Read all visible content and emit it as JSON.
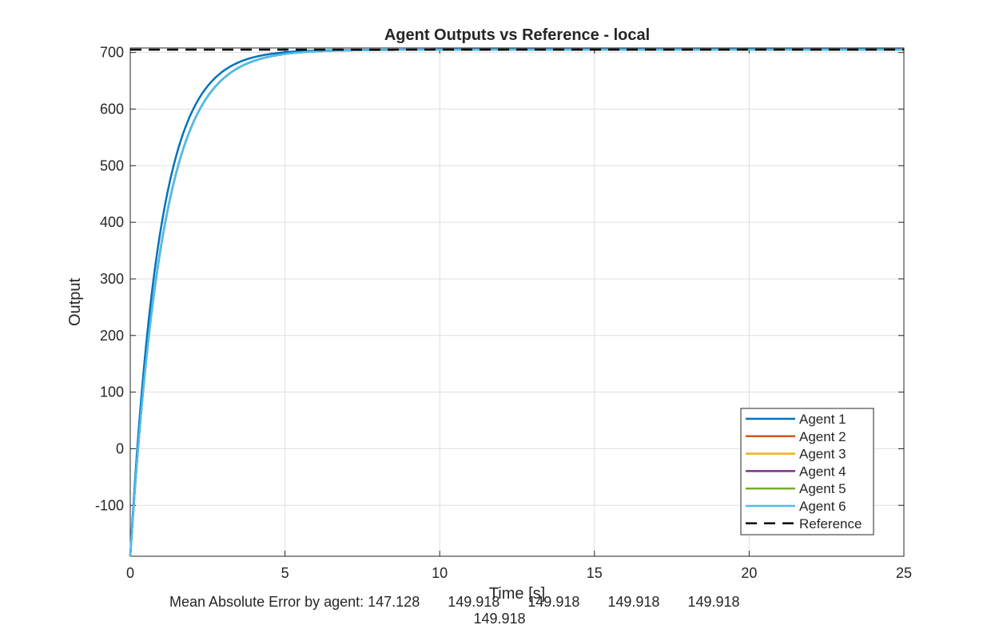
{
  "chart_data": {
    "type": "line",
    "title": "Agent Outputs vs Reference - local",
    "xlabel": "Time [s]",
    "ylabel": "Output",
    "xlim": [
      0,
      25
    ],
    "ylim": [
      -190,
      708
    ],
    "xticks": [
      0,
      5,
      10,
      15,
      20,
      25
    ],
    "yticks": [
      -100,
      0,
      100,
      200,
      300,
      400,
      500,
      600,
      700
    ],
    "grid": true,
    "legend_position": "bottom-right",
    "reference": {
      "name": "Reference",
      "value": 705,
      "color": "#000000"
    },
    "series": [
      {
        "name": "Agent 1",
        "color": "#0072BD",
        "initial": -190,
        "final": 705,
        "time_constant": 0.95
      },
      {
        "name": "Agent 2",
        "color": "#D95319",
        "initial": -190,
        "final": 705,
        "time_constant": 1.05
      },
      {
        "name": "Agent 3",
        "color": "#EDB120",
        "initial": -190,
        "final": 705,
        "time_constant": 1.05
      },
      {
        "name": "Agent 4",
        "color": "#7E2F8E",
        "initial": -190,
        "final": 705,
        "time_constant": 1.05
      },
      {
        "name": "Agent 5",
        "color": "#77AC30",
        "initial": -190,
        "final": 705,
        "time_constant": 1.05
      },
      {
        "name": "Agent 6",
        "color": "#4DBEEE",
        "initial": -190,
        "final": 705,
        "time_constant": 1.05
      }
    ]
  },
  "footer": {
    "line1": "Mean Absolute Error by agent: 147.128       149.918       149.918       149.918       149.918",
    "line2": "149.918"
  }
}
